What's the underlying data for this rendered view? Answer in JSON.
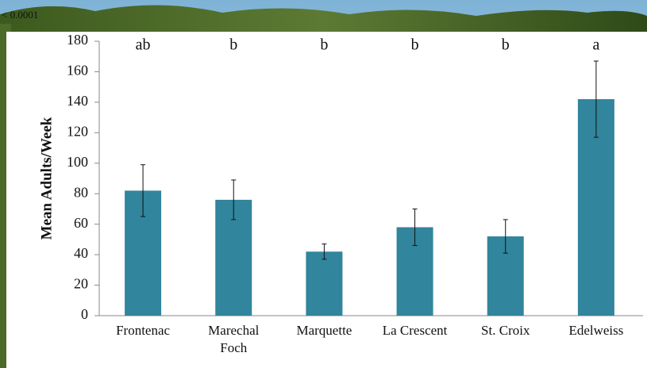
{
  "chart_data": {
    "type": "bar",
    "note": "< 0.0001",
    "y_label": "Mean Adults/Week",
    "categories": [
      "Frontenac",
      "Marechal\nFoch",
      "Marquette",
      "La Crescent",
      "St. Croix",
      "Edelweiss"
    ],
    "values": [
      82,
      76,
      42,
      58,
      52,
      142
    ],
    "errors": [
      17,
      13,
      5,
      12,
      11,
      25
    ],
    "group_letters": [
      "ab",
      "b",
      "b",
      "b",
      "b",
      "a"
    ],
    "color": "#31859c",
    "ylim": [
      0,
      180
    ],
    "yticks": [
      0,
      20,
      40,
      60,
      80,
      100,
      120,
      140,
      160,
      180
    ]
  }
}
